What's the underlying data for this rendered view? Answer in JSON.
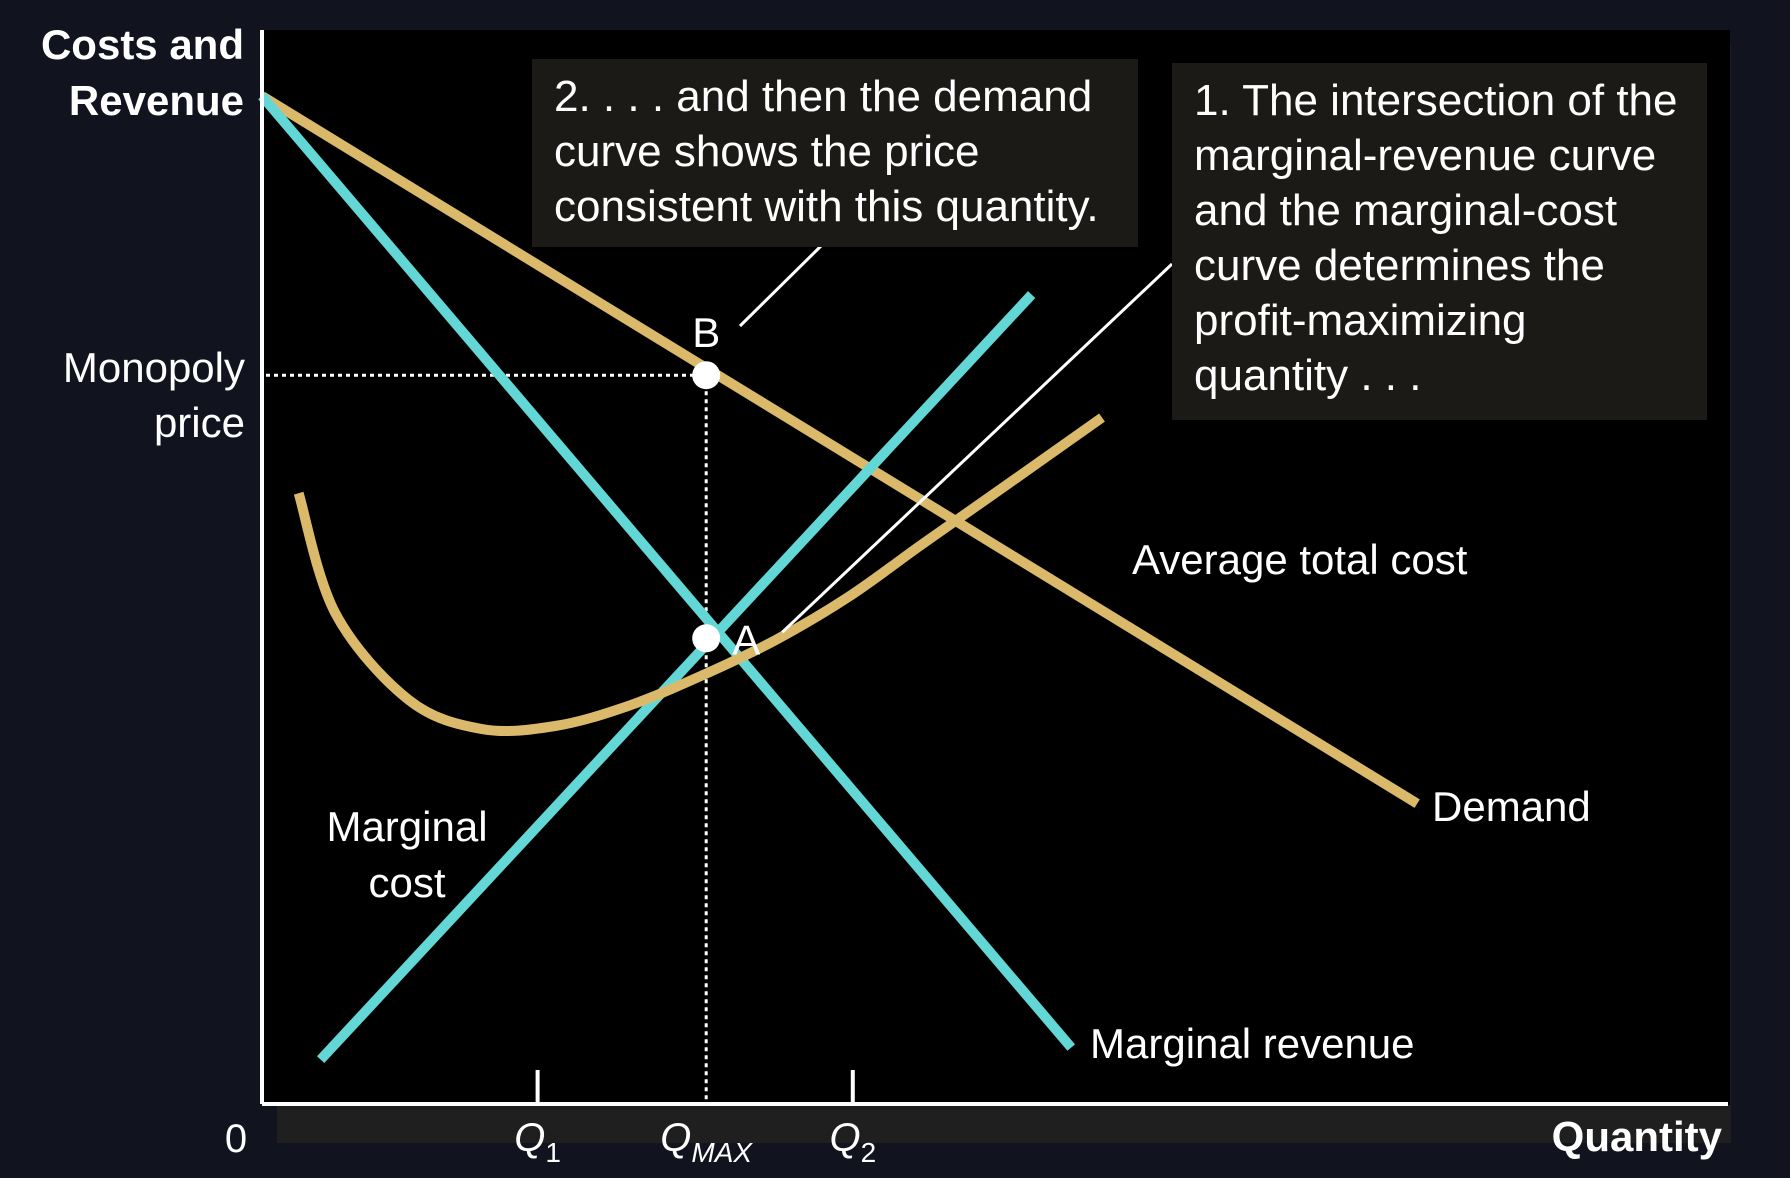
{
  "colors": {
    "demand": "#dbb96b",
    "atc": "#dbb96b",
    "marginal_revenue": "#63d7d5",
    "marginal_cost": "#63d7d5",
    "background": "#000000",
    "page": "#11131e",
    "text": "#ffffff",
    "callout_bg": "#1b1a16"
  },
  "callouts": {
    "step2": "2. . . . and then the demand\ncurve shows the price\nconsistent with this quantity.",
    "step1": "1. The intersection of the\nmarginal-revenue curve\nand the marginal-cost\ncurve determines the\nprofit-maximizing\nquantity . . ."
  },
  "chart_data": {
    "type": "line",
    "title": "",
    "ylabel_lines": [
      "Costs and",
      "Revenue"
    ],
    "xlabel": "Quantity",
    "origin_label": "0",
    "xlim": [
      0,
      100
    ],
    "ylim": [
      0,
      100
    ],
    "y_tick_label_lines": [
      "Monopoly",
      "price"
    ],
    "x_ticks": [
      {
        "label": "Q",
        "sub": "1",
        "x": 18.8
      },
      {
        "label": "Q",
        "sub": "MAX",
        "x": 30.3
      },
      {
        "label": "Q",
        "sub": "2",
        "x": 40.3
      }
    ],
    "series": [
      {
        "name": "Demand",
        "color_key": "demand",
        "shape": "line",
        "points": [
          [
            0,
            100
          ],
          [
            78.8,
            29.8
          ]
        ]
      },
      {
        "name": "Marginal revenue",
        "color_key": "marginal_revenue",
        "shape": "line",
        "points": [
          [
            0,
            100
          ],
          [
            55.2,
            5.6
          ]
        ]
      },
      {
        "name": "Marginal cost",
        "color_key": "marginal_cost",
        "shape": "line",
        "points": [
          [
            4.0,
            4.4
          ],
          [
            52.5,
            80.3
          ]
        ]
      },
      {
        "name": "Average total cost",
        "color_key": "atc",
        "shape": "curve",
        "points": [
          [
            2.5,
            60.6
          ],
          [
            5,
            48.7
          ],
          [
            10,
            40.1
          ],
          [
            15,
            37.2
          ],
          [
            20,
            37.5
          ],
          [
            25,
            39.5
          ],
          [
            30,
            42.5
          ],
          [
            35,
            46
          ],
          [
            40,
            50.3
          ],
          [
            45,
            55.5
          ],
          [
            50,
            60.6
          ],
          [
            57.3,
            68.1
          ]
        ]
      }
    ],
    "guides": {
      "monopoly_price": 72.3,
      "q_max": 30.3,
      "mc_equals_mr": 46.2
    },
    "points": [
      {
        "label": "B",
        "x": 30.3,
        "y": 72.3
      },
      {
        "label": "A",
        "x": 30.3,
        "y": 46.2
      }
    ],
    "series_labels": {
      "demand": "Demand",
      "marginal_revenue": "Marginal revenue",
      "marginal_cost_lines": [
        "Marginal",
        "cost"
      ],
      "atc": "Average total cost"
    }
  }
}
